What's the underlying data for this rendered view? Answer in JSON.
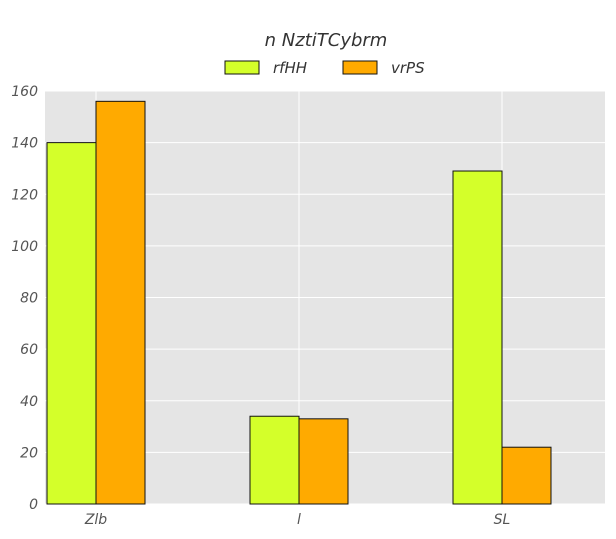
{
  "chart_data": {
    "type": "bar",
    "title": "n NztiTCybrm",
    "xlabel": "",
    "ylabel": "",
    "categories": [
      "Zlb",
      "l",
      "SL"
    ],
    "series": [
      {
        "name": "rfHH",
        "values": [
          140,
          34,
          129
        ],
        "color": "#d4ff2a"
      },
      {
        "name": "vrPS",
        "values": [
          156,
          33,
          22
        ],
        "color": "#ffaa00"
      }
    ],
    "ylim": [
      0,
      160
    ],
    "yticks": [
      0,
      20,
      40,
      60,
      80,
      100,
      120,
      140,
      160
    ],
    "grid": true,
    "legend_position": "top-center",
    "plot_background": "#e5e5e5"
  }
}
